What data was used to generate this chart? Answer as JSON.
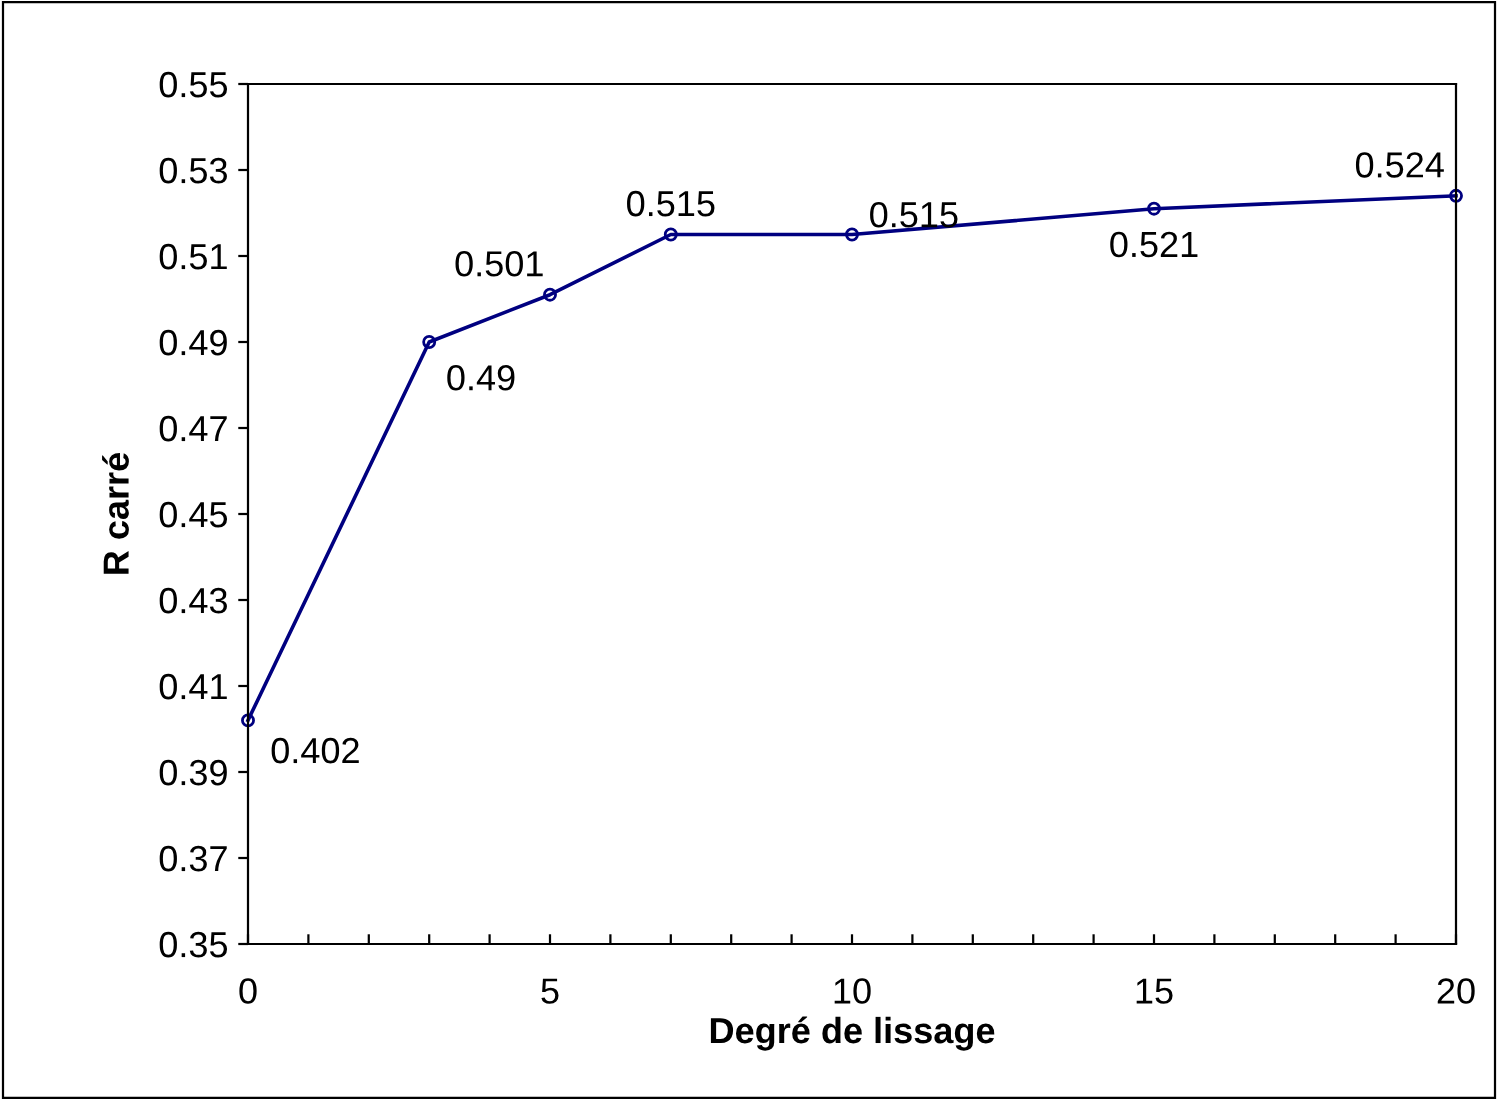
{
  "chart_data": {
    "type": "line",
    "xlabel": "Degré de lissage",
    "ylabel": "R carré",
    "x": [
      0,
      3,
      5,
      7,
      10,
      15,
      20
    ],
    "series": [
      {
        "color": "#000080",
        "values": [
          0.402,
          0.49,
          0.501,
          0.515,
          0.515,
          0.521,
          0.524
        ]
      }
    ],
    "data_labels": true,
    "marker": "circle",
    "line_style": "solid",
    "grid": false,
    "xlim": [
      0,
      20
    ],
    "xticks": [
      0,
      {
        "value": 1,
        "label": null
      },
      {
        "value": 2,
        "label": null
      },
      {
        "value": 3,
        "label": null
      },
      {
        "value": 4,
        "label": null
      },
      5,
      {
        "value": 6,
        "label": null
      },
      {
        "value": 7,
        "label": null
      },
      {
        "value": 8,
        "label": null
      },
      {
        "value": 9,
        "label": null
      },
      10,
      {
        "value": 11,
        "label": null
      },
      {
        "value": 12,
        "label": null
      },
      {
        "value": 13,
        "label": null
      },
      {
        "value": 14,
        "label": null
      },
      15,
      {
        "value": 16,
        "label": null
      },
      {
        "value": 17,
        "label": null
      },
      {
        "value": 18,
        "label": null
      },
      {
        "value": 19,
        "label": null
      },
      20
    ],
    "ylim": [
      0.35,
      0.55
    ],
    "yticks": [
      0.35,
      0.37,
      0.39,
      0.41,
      0.43,
      0.45,
      0.47,
      0.49,
      0.51,
      0.53,
      0.55
    ]
  }
}
